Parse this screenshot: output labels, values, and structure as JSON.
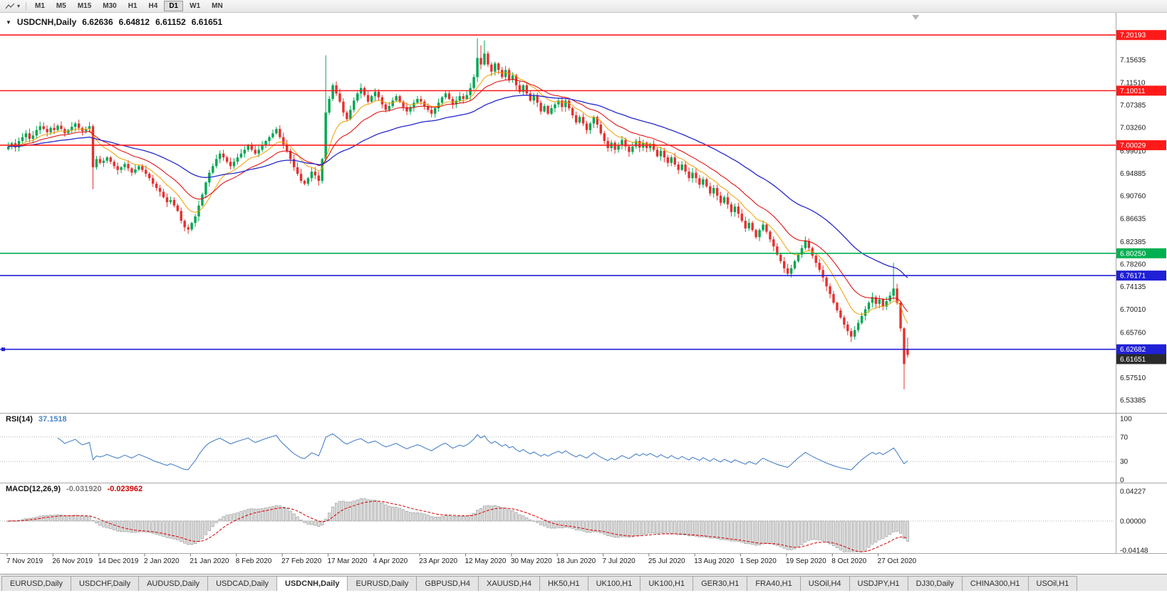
{
  "toolbar": {
    "periods": [
      "M1",
      "M5",
      "M15",
      "M30",
      "H1",
      "H4",
      "D1",
      "W1",
      "MN"
    ],
    "active_period": "D1"
  },
  "chart": {
    "title_symbol": "USDCNH,Daily",
    "quote": {
      "open": "6.62636",
      "high": "6.64812",
      "low": "6.61152",
      "close": "6.61651"
    },
    "price_axis_labels": [
      7.15635,
      7.1151,
      7.07385,
      7.0326,
      6.9901,
      6.94885,
      6.9076,
      6.86635,
      6.82385,
      6.7826,
      6.74135,
      6.7001,
      6.6576,
      6.61635,
      6.5751,
      6.53385
    ],
    "level_lines": [
      {
        "price": 7.20193,
        "color": "#ff1a1a"
      },
      {
        "price": 7.10011,
        "color": "#ff1a1a"
      },
      {
        "price": 7.00029,
        "color": "#ff1a1a"
      },
      {
        "price": 6.8025,
        "color": "#00b050"
      },
      {
        "price": 6.76171,
        "color": "#2020d6"
      },
      {
        "price": 6.62682,
        "color": "#2020d6",
        "anchor": true
      }
    ],
    "current_price": {
      "value": 6.61651,
      "tag_color": "#2b2b2b"
    },
    "up_color": "#00a651",
    "down_color": "#e53030"
  },
  "rsi": {
    "label": "RSI(14)",
    "value": "37.1518",
    "period": 14,
    "levels": [
      70,
      30
    ],
    "scale_labels": [
      100,
      70,
      30,
      0
    ],
    "color": "#4a82c8"
  },
  "macd": {
    "label": "MACD(12,26,9)",
    "value_macd": "-0.031920",
    "value_signal": "-0.023962",
    "fast": 12,
    "slow": 26,
    "signal_period": 9,
    "scale_top": 0.04227,
    "scale_bottom": -0.04148,
    "scale_labels": [
      0.04227,
      0,
      -0.04148
    ],
    "histogram_fill": "#e0e0e0",
    "histogram_stroke": "#9c9c9c",
    "signal_color": "#d40000"
  },
  "time_axis": {
    "candles_per_label": 13,
    "labels": [
      "7 Nov 2019",
      "26 Nov 2019",
      "14 Dec 2019",
      "2 Jan 2020",
      "21 Jan 2020",
      "8 Feb 2020",
      "27 Feb 2020",
      "17 Mar 2020",
      "4 Apr 2020",
      "23 Apr 2020",
      "12 May 2020",
      "30 May 2020",
      "18 Jun 2020",
      "7 Jul 2020",
      "25 Jul 2020",
      "13 Aug 2020",
      "1 Sep 2020",
      "19 Sep 2020",
      "8 Oct 2020",
      "27 Oct 2020"
    ]
  },
  "tabs": {
    "active_index": 4,
    "items": [
      "EURUSD,Daily",
      "USDCHF,Daily",
      "AUDUSD,Daily",
      "USDCAD,Daily",
      "USDCNH,Daily",
      "EURUSD,Daily",
      "GBPUSD,H4",
      "XAUUSD,H4",
      "HK50,H1",
      "UK100,H1",
      "UK100,H1",
      "GER30,H1",
      "FRA40,H1",
      "USOil,H4",
      "USDJPY,H1",
      "DJ30,Daily",
      "CHINA300,H1",
      "USOil,H1"
    ]
  },
  "chart_data": {
    "type": "candlestick",
    "symbol": "USDCNH",
    "timeframe": "Daily",
    "x_range": [
      "7 Nov 2019",
      "6 Nov 2020"
    ],
    "price_range_top": 7.24,
    "price_range_bottom": 6.513,
    "closes": [
      6.998,
      7.004,
      6.996,
      7.008,
      7.015,
      7.022,
      7.012,
      7.018,
      7.028,
      7.035,
      7.03,
      7.024,
      7.032,
      7.028,
      7.036,
      7.03,
      7.022,
      7.028,
      7.034,
      7.04,
      7.032,
      7.026,
      7.03,
      7.035,
      6.96,
      6.975,
      6.968,
      6.972,
      6.978,
      6.97,
      6.962,
      6.955,
      6.96,
      6.966,
      6.958,
      6.95,
      6.956,
      6.962,
      6.955,
      6.948,
      6.94,
      6.93,
      6.922,
      6.915,
      6.905,
      6.896,
      6.9,
      6.89,
      6.88,
      6.862,
      6.85,
      6.846,
      6.858,
      6.87,
      6.89,
      6.91,
      6.932,
      6.95,
      6.962,
      6.975,
      6.985,
      6.978,
      6.97,
      6.962,
      6.97,
      6.978,
      6.985,
      6.992,
      7.0,
      6.992,
      6.985,
      6.992,
      7.0,
      7.008,
      7.015,
      7.022,
      7.03,
      7.015,
      7.002,
      6.99,
      6.975,
      6.96,
      6.948,
      6.935,
      6.93,
      6.94,
      6.952,
      6.945,
      6.935,
      6.975,
      7.06,
      7.085,
      7.11,
      7.095,
      7.08,
      7.06,
      7.048,
      7.065,
      7.082,
      7.095,
      7.105,
      7.092,
      7.08,
      7.09,
      7.098,
      7.088,
      7.075,
      7.065,
      7.072,
      7.082,
      7.09,
      7.08,
      7.07,
      7.062,
      7.07,
      7.078,
      7.085,
      7.08,
      7.072,
      7.065,
      7.058,
      7.068,
      7.078,
      7.088,
      7.095,
      7.085,
      7.075,
      7.082,
      7.09,
      7.085,
      7.092,
      7.105,
      7.125,
      7.16,
      7.148,
      7.168,
      7.148,
      7.135,
      7.15,
      7.138,
      7.125,
      7.138,
      7.12,
      7.128,
      7.11,
      7.098,
      7.11,
      7.095,
      7.082,
      7.092,
      7.078,
      7.062,
      7.072,
      7.058,
      7.068,
      7.075,
      7.082,
      7.07,
      7.082,
      7.068,
      7.055,
      7.042,
      7.052,
      7.04,
      7.028,
      7.04,
      7.052,
      7.038,
      7.022,
      7.008,
      6.995,
      7.005,
      6.992,
      7.0,
      7.01,
      6.998,
      6.988,
      6.998,
      7.008,
      6.996,
      7.005,
      6.995,
      7.003,
      6.992,
      6.98,
      6.99,
      6.978,
      6.968,
      6.978,
      6.965,
      6.955,
      6.965,
      6.952,
      6.94,
      6.95,
      6.94,
      6.928,
      6.938,
      6.925,
      6.912,
      6.922,
      6.908,
      6.895,
      6.905,
      6.892,
      6.878,
      6.888,
      6.875,
      6.862,
      6.848,
      6.858,
      6.845,
      6.832,
      6.845,
      6.855,
      6.842,
      6.828,
      6.815,
      6.8,
      6.788,
      6.775,
      6.765,
      6.775,
      6.788,
      6.8,
      6.812,
      6.825,
      6.812,
      6.798,
      6.785,
      6.772,
      6.758,
      6.742,
      6.728,
      6.712,
      6.698,
      6.685,
      6.672,
      6.66,
      6.65,
      6.662,
      6.675,
      6.688,
      6.7,
      6.712,
      6.722,
      6.71,
      6.718,
      6.705,
      6.715,
      6.725,
      6.738,
      6.712,
      6.665,
      6.6,
      6.6165
    ],
    "special_candles": {
      "24": {
        "l": 6.92
      },
      "51": {
        "l": 6.838
      },
      "90": {
        "h": 7.165
      },
      "133": {
        "h": 7.196
      },
      "134": {
        "h": 7.183
      },
      "135": {
        "h": 7.192
      },
      "239": {
        "l": 6.64
      },
      "251": {
        "h": 6.785
      },
      "254": {
        "l": 6.5535
      },
      "255": {
        "o": 6.62636,
        "h": 6.64812,
        "l": 6.61152,
        "c": 6.61651
      }
    },
    "wick": {
      "base": 0.002,
      "var": 0.007
    },
    "moving_averages": [
      {
        "type": "ema",
        "period": 10,
        "color": "#f0a000"
      },
      {
        "type": "ema",
        "period": 20,
        "color": "#e10000"
      },
      {
        "type": "ema",
        "period": 50,
        "color": "#2727cc"
      }
    ]
  }
}
